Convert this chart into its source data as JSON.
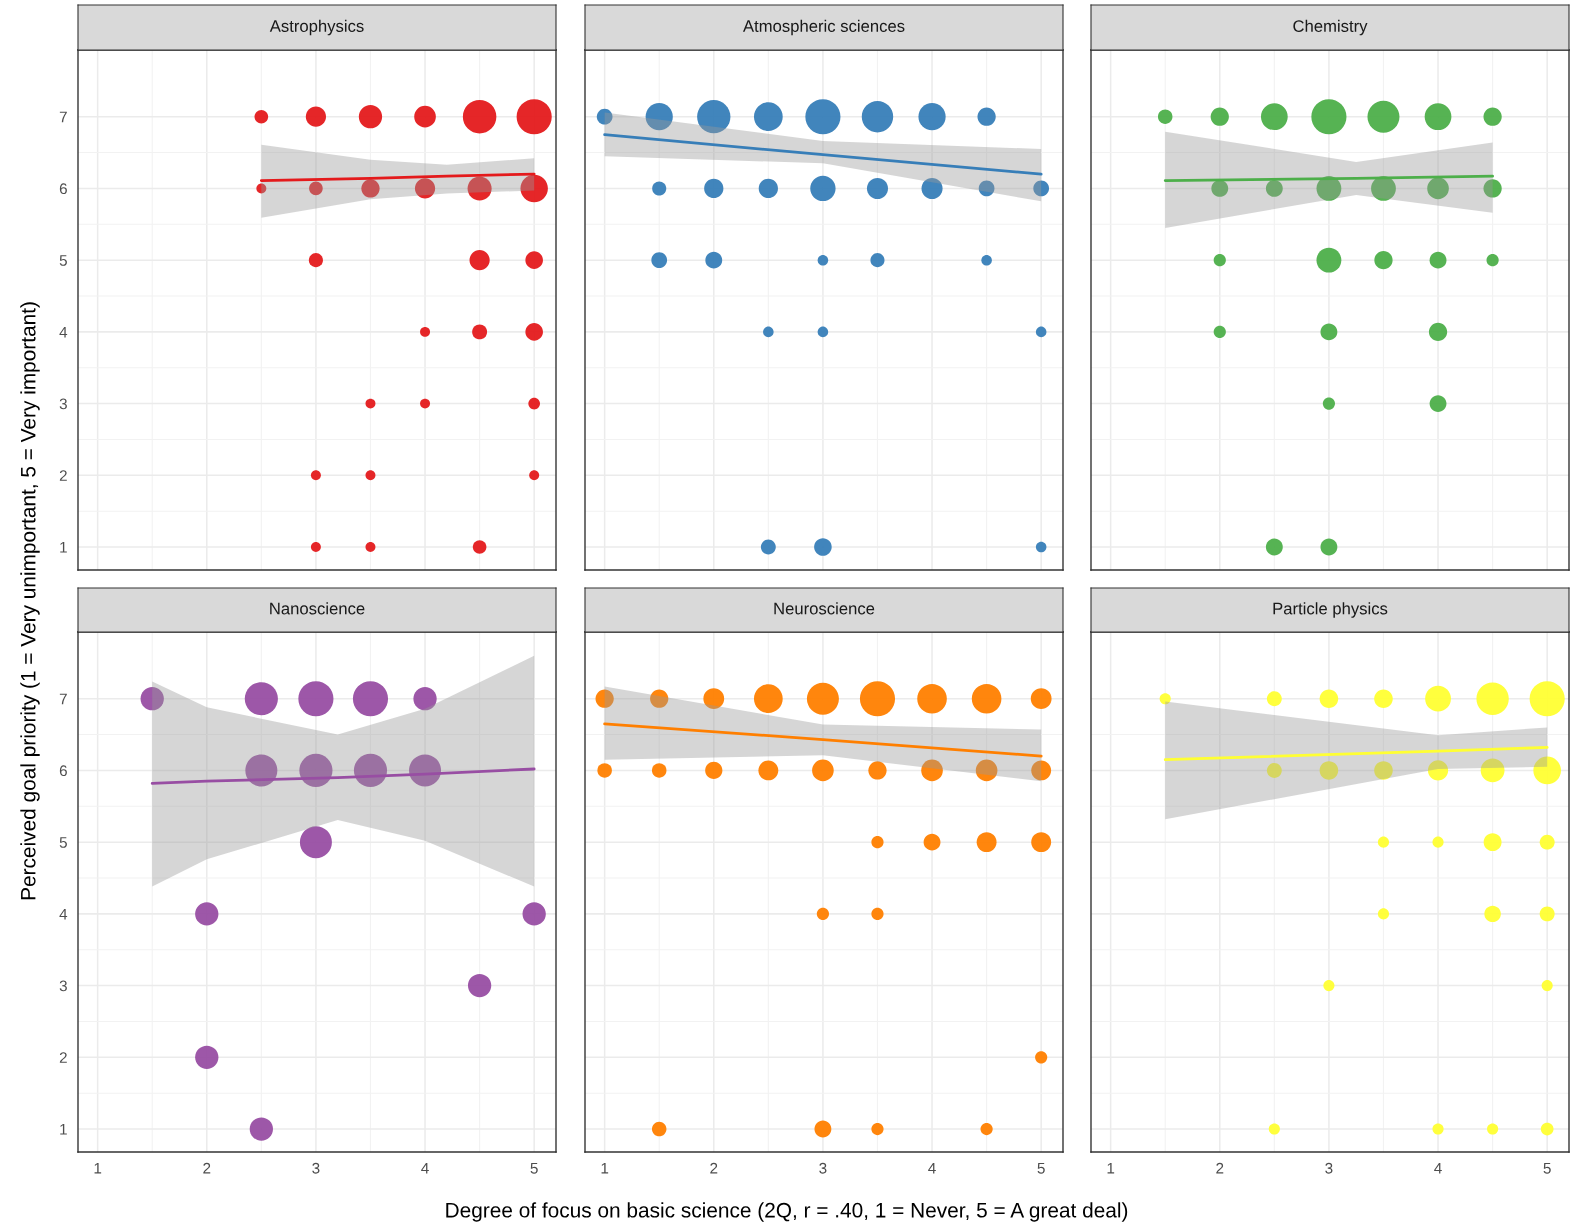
{
  "chart_data": [
    {
      "type": "bubble",
      "title": "Astrophysics",
      "ylabel": "Perceived goal priority (1 = Very unimportant, 5 = Very important)",
      "xlim": [
        0.82,
        5.2
      ],
      "ylim": [
        0.68,
        7.93
      ],
      "xticks": [
        1,
        2,
        3,
        4,
        5
      ],
      "yticks": [
        1,
        2,
        3,
        4,
        5,
        6,
        7
      ],
      "tick_labels": "y",
      "grid": true,
      "series": [
        {
          "color": "#e41a1c",
          "marker": "circle",
          "x": [
            2.5,
            3,
            3.5,
            4,
            4.5,
            5,
            2.5,
            3,
            3.5,
            4,
            4.5,
            5,
            3,
            4.5,
            5,
            4,
            4.5,
            5,
            3.5,
            4,
            5,
            3,
            3.5,
            5,
            3,
            3.5,
            4.5
          ],
          "values": [
            7,
            7,
            7,
            7,
            7,
            7,
            6,
            6,
            6,
            6,
            6,
            6,
            5,
            5,
            5,
            4,
            4,
            4,
            3,
            3,
            3,
            2,
            2,
            2,
            1,
            1,
            1
          ],
          "sizes": [
            0.15,
            0.33,
            0.44,
            0.38,
            0.91,
            1,
            0.08,
            0.15,
            0.27,
            0.33,
            0.47,
            0.61,
            0.16,
            0.33,
            0.25,
            0.08,
            0.18,
            0.25,
            0.08,
            0.08,
            0.11,
            0.08,
            0.08,
            0.08,
            0.08,
            0.08,
            0.15
          ]
        },
        {
          "type": "line",
          "color": "#e41a1c",
          "x": [
            2.5,
            3.5,
            4.2,
            5
          ],
          "values": [
            6.11,
            6.14,
            6.17,
            6.2
          ],
          "lower": [
            5.59,
            5.85,
            5.93,
            5.97
          ],
          "upper": [
            6.61,
            6.4,
            6.33,
            6.42
          ]
        }
      ]
    },
    {
      "type": "bubble",
      "title": "Atmospheric sciences",
      "xlim": [
        0.82,
        5.2
      ],
      "ylim": [
        0.68,
        7.93
      ],
      "xticks": [
        1,
        2,
        3,
        4,
        5
      ],
      "yticks": [
        1,
        2,
        3,
        4,
        5,
        6,
        7
      ],
      "tick_labels": false,
      "grid": true,
      "series": [
        {
          "color": "#377eb8",
          "marker": "circle",
          "x": [
            1,
            1.5,
            2,
            2.5,
            3,
            3.5,
            4,
            4.5,
            1.5,
            2,
            2.5,
            3,
            3.5,
            4,
            4.5,
            5,
            1.5,
            2,
            3,
            3.5,
            4.5,
            2.5,
            3,
            5,
            2.5,
            3,
            5
          ],
          "values": [
            7,
            7,
            7,
            7,
            7,
            7,
            7,
            7,
            6,
            6,
            6,
            6,
            6,
            6,
            6,
            6,
            5,
            5,
            5,
            5,
            5,
            4,
            4,
            4,
            1,
            1,
            1
          ],
          "sizes": [
            0.2,
            0.6,
            0.9,
            0.67,
            1,
            0.8,
            0.6,
            0.27,
            0.16,
            0.3,
            0.3,
            0.52,
            0.36,
            0.36,
            0.2,
            0.2,
            0.2,
            0.23,
            0.09,
            0.16,
            0.09,
            0.09,
            0.09,
            0.09,
            0.18,
            0.25,
            0.09
          ]
        },
        {
          "type": "line",
          "color": "#377eb8",
          "x": [
            1,
            3,
            5
          ],
          "values": [
            6.75,
            6.47,
            6.2
          ],
          "lower": [
            6.45,
            6.35,
            5.82
          ],
          "upper": [
            7.06,
            6.66,
            6.55
          ]
        }
      ]
    },
    {
      "type": "bubble",
      "title": "Chemistry",
      "xlim": [
        0.82,
        5.2
      ],
      "ylim": [
        0.68,
        7.93
      ],
      "xticks": [
        1,
        2,
        3,
        4,
        5
      ],
      "yticks": [
        1,
        2,
        3,
        4,
        5,
        6,
        7
      ],
      "tick_labels": false,
      "grid": true,
      "series": [
        {
          "color": "#4daf4a",
          "marker": "circle",
          "x": [
            1.5,
            2,
            2.5,
            3,
            3.5,
            4,
            4.5,
            2,
            2.5,
            3,
            3.5,
            4,
            4.5,
            2,
            3,
            3.5,
            4,
            4.5,
            2,
            3,
            4,
            3,
            4,
            2.5,
            3
          ],
          "values": [
            7,
            7,
            7,
            7,
            7,
            7,
            7,
            6,
            6,
            6,
            6,
            6,
            6,
            5,
            5,
            5,
            5,
            5,
            4,
            4,
            4,
            3,
            3,
            1,
            1
          ],
          "sizes": [
            0.17,
            0.27,
            0.58,
            1,
            0.83,
            0.58,
            0.27,
            0.23,
            0.23,
            0.5,
            0.5,
            0.38,
            0.27,
            0.12,
            0.5,
            0.27,
            0.23,
            0.12,
            0.12,
            0.23,
            0.27,
            0.12,
            0.23,
            0.23,
            0.23
          ]
        },
        {
          "type": "line",
          "color": "#4daf4a",
          "x": [
            1.5,
            3.25,
            4.5
          ],
          "values": [
            6.11,
            6.14,
            6.17
          ],
          "lower": [
            5.45,
            5.91,
            5.66
          ],
          "upper": [
            6.79,
            6.37,
            6.64
          ]
        }
      ]
    },
    {
      "type": "bubble",
      "title": "Nanoscience",
      "xlim": [
        0.82,
        5.2
      ],
      "ylim": [
        0.68,
        7.93
      ],
      "xticks": [
        1,
        2,
        3,
        4,
        5
      ],
      "yticks": [
        1,
        2,
        3,
        4,
        5,
        6,
        7
      ],
      "grid": true,
      "series": [
        {
          "color": "#984ea3",
          "marker": "circle",
          "x": [
            1.5,
            2.5,
            3,
            3.5,
            4,
            2.5,
            3,
            3.5,
            4,
            3,
            2,
            5,
            4.5,
            2,
            2.5
          ],
          "values": [
            7,
            7,
            7,
            7,
            7,
            6,
            6,
            6,
            6,
            5,
            4,
            4,
            3,
            2,
            1
          ],
          "sizes": [
            0.44,
            0.89,
            1,
            1,
            0.44,
            0.83,
            0.89,
            0.89,
            0.83,
            0.83,
            0.44,
            0.44,
            0.44,
            0.44,
            0.44
          ]
        },
        {
          "type": "line",
          "color": "#984ea3",
          "x": [
            1.5,
            2,
            3.2,
            4,
            5
          ],
          "values": [
            5.82,
            5.85,
            5.9,
            5.95,
            6.02
          ],
          "lower": [
            4.38,
            4.76,
            5.31,
            5.02,
            4.38
          ],
          "upper": [
            7.24,
            6.88,
            6.5,
            6.86,
            7.6
          ]
        }
      ]
    },
    {
      "type": "bubble",
      "title": "Neuroscience",
      "xlabel": "Degree of focus on basic science (2Q, r = .40, 1 = Never, 5 = A great deal)",
      "xlim": [
        0.82,
        5.2
      ],
      "ylim": [
        0.68,
        7.93
      ],
      "xticks": [
        1,
        2,
        3,
        4,
        5
      ],
      "yticks": [
        1,
        2,
        3,
        4,
        5,
        6,
        7
      ],
      "tick_labels": "x",
      "grid": true,
      "series": [
        {
          "color": "#ff7f00",
          "marker": "circle",
          "x": [
            1,
            1.5,
            2,
            2.5,
            3,
            3.5,
            4,
            4.5,
            5,
            1,
            1.5,
            2,
            2.5,
            3,
            3.5,
            4,
            4.5,
            5,
            3.5,
            4,
            4.5,
            5,
            3,
            3.5,
            5,
            1.5,
            3,
            3.5,
            4.5
          ],
          "values": [
            7,
            7,
            7,
            7,
            7,
            7,
            7,
            7,
            7,
            6,
            6,
            6,
            6,
            6,
            6,
            6,
            6,
            6,
            5,
            5,
            5,
            5,
            4,
            4,
            2,
            1,
            1,
            1,
            1
          ],
          "sizes": [
            0.27,
            0.27,
            0.35,
            0.67,
            0.83,
            1,
            0.71,
            0.71,
            0.35,
            0.17,
            0.17,
            0.24,
            0.32,
            0.38,
            0.27,
            0.38,
            0.38,
            0.32,
            0.12,
            0.23,
            0.32,
            0.32,
            0.12,
            0.12,
            0.12,
            0.17,
            0.23,
            0.12,
            0.12
          ]
        },
        {
          "type": "line",
          "color": "#ff7f00",
          "x": [
            1,
            3,
            5
          ],
          "values": [
            6.65,
            6.43,
            6.2
          ],
          "lower": [
            6.15,
            6.21,
            5.85
          ],
          "upper": [
            7.17,
            6.64,
            6.57
          ]
        }
      ]
    },
    {
      "type": "bubble",
      "title": "Particle physics",
      "xlim": [
        0.82,
        5.2
      ],
      "ylim": [
        0.68,
        7.93
      ],
      "xticks": [
        1,
        2,
        3,
        4,
        5
      ],
      "yticks": [
        1,
        2,
        3,
        4,
        5,
        6,
        7
      ],
      "tick_labels": "x",
      "grid": true,
      "series": [
        {
          "color": "#ffff33",
          "marker": "circle",
          "x": [
            1.5,
            2.5,
            3,
            3.5,
            4,
            4.5,
            5,
            2.5,
            3,
            3.5,
            4,
            4.5,
            5,
            3.5,
            4,
            4.5,
            5,
            3.5,
            4.5,
            5,
            3,
            5,
            2.5,
            4,
            4.5,
            5
          ],
          "values": [
            7,
            7,
            7,
            7,
            7,
            7,
            7,
            6,
            6,
            6,
            6,
            6,
            6,
            5,
            5,
            5,
            5,
            4,
            4,
            4,
            3,
            3,
            1,
            1,
            1,
            1
          ],
          "sizes": [
            0.1,
            0.18,
            0.28,
            0.28,
            0.54,
            0.85,
            1,
            0.18,
            0.28,
            0.28,
            0.33,
            0.46,
            0.62,
            0.1,
            0.1,
            0.26,
            0.18,
            0.1,
            0.22,
            0.18,
            0.1,
            0.1,
            0.1,
            0.1,
            0.1,
            0.13
          ]
        },
        {
          "type": "line",
          "color": "#ffff33",
          "x": [
            1.5,
            4,
            5
          ],
          "values": [
            6.15,
            6.27,
            6.32
          ],
          "lower": [
            5.32,
            6.02,
            6.05
          ],
          "upper": [
            6.96,
            6.49,
            6.6
          ]
        }
      ]
    }
  ]
}
